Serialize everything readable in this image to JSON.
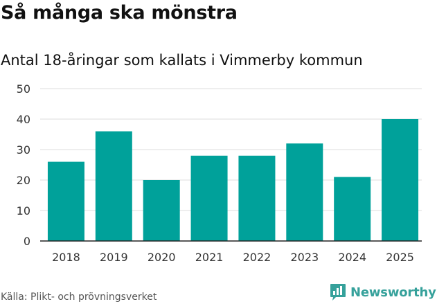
{
  "chart_data": {
    "type": "bar",
    "title": "Så många ska mönstra",
    "subtitle": "Antal 18-åringar som kallats i Vimmerby kommun",
    "categories": [
      "2018",
      "2019",
      "2020",
      "2021",
      "2022",
      "2023",
      "2024",
      "2025"
    ],
    "values": [
      26,
      36,
      20,
      28,
      28,
      32,
      21,
      40
    ],
    "ylim": [
      0,
      50
    ],
    "yticks": [
      0,
      10,
      20,
      30,
      40,
      50
    ],
    "grid": true,
    "bar_color": "#00a19a"
  },
  "footer": {
    "source": "Källa: Plikt- och prövningsverket",
    "brand": "Newsworthy",
    "brand_color": "#36a19b",
    "brand_icon": "newsworthy-logo-icon"
  }
}
